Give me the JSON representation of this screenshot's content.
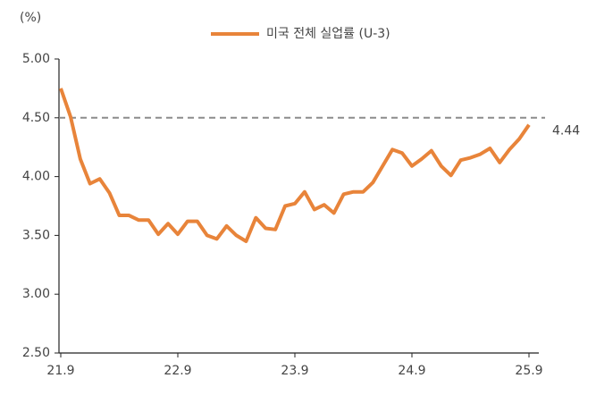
{
  "chart_data": {
    "type": "line",
    "y_axis_label": "(%)",
    "categories": [
      "21.9",
      null,
      null,
      null,
      null,
      null,
      null,
      null,
      null,
      null,
      null,
      null,
      "22.9",
      null,
      null,
      null,
      null,
      null,
      null,
      null,
      null,
      null,
      null,
      null,
      "23.9",
      null,
      null,
      null,
      null,
      null,
      null,
      null,
      null,
      null,
      null,
      null,
      "24.9",
      null,
      null,
      null,
      null,
      null,
      null,
      null,
      null,
      null,
      null,
      null,
      "25.9"
    ],
    "series": [
      {
        "name": "미국 전체 실업률 (U-3)",
        "color": "#e8843a",
        "values": [
          4.75,
          4.51,
          4.15,
          3.94,
          3.98,
          3.86,
          3.67,
          3.67,
          3.63,
          3.63,
          3.51,
          3.6,
          3.51,
          3.62,
          3.62,
          3.5,
          3.47,
          3.58,
          3.5,
          3.45,
          3.65,
          3.56,
          3.55,
          3.75,
          3.77,
          3.87,
          3.72,
          3.76,
          3.69,
          3.85,
          3.87,
          3.87,
          3.95,
          4.09,
          4.23,
          4.2,
          4.09,
          4.15,
          4.22,
          4.09,
          4.01,
          4.14,
          4.16,
          4.19,
          4.24,
          4.12,
          4.23,
          4.32,
          4.44
        ]
      }
    ],
    "ylim": [
      2.5,
      5.0
    ],
    "yticks": [
      {
        "value": 2.5,
        "label": "2.50"
      },
      {
        "value": 3.0,
        "label": "3.00"
      },
      {
        "value": 3.5,
        "label": "3.50"
      },
      {
        "value": 4.0,
        "label": "4.00"
      },
      {
        "value": 4.5,
        "label": "4.50"
      },
      {
        "value": 5.0,
        "label": "5.00"
      }
    ],
    "reference_line": 4.5,
    "reference_line_color": "#8c8c8c",
    "legend": "top"
  }
}
